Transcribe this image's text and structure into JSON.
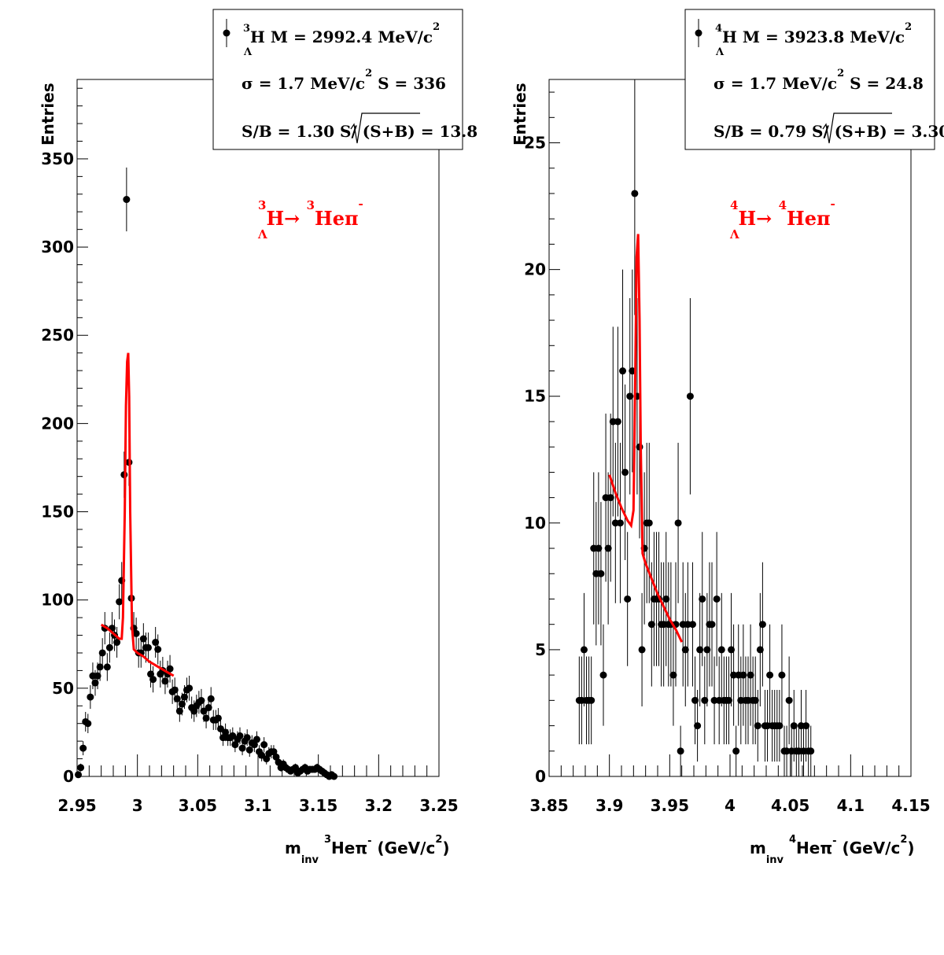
{
  "chart_data": [
    {
      "type": "scatter",
      "xlabel": {
        "pre": "m",
        "sub": "inv",
        "mass_num": "3",
        "particle": "Heπ",
        "charge": "-",
        "units": "(GeV/c",
        "units_sup": "2",
        "units_end": ")"
      },
      "ylabel": "Entries",
      "xlim": [
        2.95,
        3.25
      ],
      "ylim": [
        0,
        395
      ],
      "xticks": [
        2.95,
        3.0,
        3.05,
        3.1,
        3.15,
        3.2,
        3.25
      ],
      "xtick_labels": [
        "2.95",
        "3",
        "3.05",
        "3.1",
        "3.15",
        "3.2",
        "3.25"
      ],
      "yticks": [
        0,
        50,
        100,
        150,
        200,
        250,
        300,
        350
      ],
      "ytick_labels": [
        "0",
        "50",
        "100",
        "150",
        "200",
        "250",
        "300",
        "350"
      ],
      "legend": {
        "line1": {
          "mass_num": "3",
          "sub": "Λ",
          "text": "H M = 2992.4 MeV/c",
          "sup": "2"
        },
        "line2": {
          "text_a": "σ = 1.7 MeV/c",
          "sup": "2",
          "text_b": "S =  336"
        },
        "line3": {
          "text_a": "S/B = 1.30  S/",
          "sqrt_arg": "(S+B)",
          "text_b": " = 13.8"
        }
      },
      "annotation": {
        "mass1": "3",
        "sub1": "Λ",
        "part1": "H→",
        "mass2": "3",
        "part2": "Heπ",
        "charge": "-",
        "color": "#ff0000"
      },
      "series": [
        {
          "kind": "points",
          "x": [
            2.951,
            2.953,
            2.955,
            2.957,
            2.959,
            2.961,
            2.963,
            2.965,
            2.967,
            2.969,
            2.971,
            2.973,
            2.975,
            2.977,
            2.979,
            2.981,
            2.983,
            2.985,
            2.987,
            2.989,
            2.991,
            2.993,
            2.995,
            2.997,
            2.999,
            3.001,
            3.003,
            3.005,
            3.007,
            3.009,
            3.011,
            3.013,
            3.015,
            3.017,
            3.019,
            3.021,
            3.023,
            3.025,
            3.027,
            3.029,
            3.031,
            3.033,
            3.035,
            3.037,
            3.039,
            3.041,
            3.043,
            3.045,
            3.047,
            3.049,
            3.051,
            3.053,
            3.055,
            3.057,
            3.059,
            3.061,
            3.063,
            3.065,
            3.067,
            3.069,
            3.071,
            3.073,
            3.075,
            3.077,
            3.079,
            3.081,
            3.083,
            3.085,
            3.087,
            3.089,
            3.091,
            3.093,
            3.095,
            3.097,
            3.099,
            3.101,
            3.103,
            3.105,
            3.107,
            3.109,
            3.111,
            3.113,
            3.115,
            3.117,
            3.119,
            3.121,
            3.123,
            3.125,
            3.127,
            3.129,
            3.131,
            3.133,
            3.135,
            3.137,
            3.139,
            3.141,
            3.143,
            3.145,
            3.147,
            3.149,
            3.151,
            3.153,
            3.155,
            3.157,
            3.159,
            3.161,
            3.163
          ],
          "y": [
            1,
            5,
            16,
            31,
            30,
            45,
            57,
            53,
            57,
            62,
            70,
            84,
            62,
            73,
            84,
            80,
            76,
            99,
            111,
            171,
            327,
            178,
            101,
            84,
            81,
            70,
            70,
            78,
            73,
            73,
            58,
            55,
            76,
            72,
            58,
            60,
            54,
            58,
            61,
            48,
            49,
            44,
            37,
            41,
            45,
            49,
            50,
            39,
            37,
            40,
            42,
            43,
            37,
            33,
            39,
            44,
            32,
            32,
            33,
            27,
            22,
            25,
            22,
            22,
            23,
            18,
            21,
            23,
            16,
            20,
            22,
            15,
            19,
            18,
            21,
            14,
            12,
            18,
            10,
            13,
            14,
            14,
            11,
            8,
            5,
            7,
            5,
            4,
            3,
            4,
            5,
            2,
            3,
            4,
            5,
            3,
            4,
            4,
            4,
            5,
            4,
            3,
            2,
            1,
            0,
            1,
            0
          ],
          "err_mode": "sqrt"
        },
        {
          "kind": "fit",
          "color": "#ff0000",
          "x": [
            2.97,
            2.975,
            2.98,
            2.985,
            2.987,
            2.988,
            2.9895,
            2.9905,
            2.9915,
            2.9924,
            2.9932,
            2.994,
            2.9955,
            2.997,
            3.0,
            3.005,
            3.01,
            3.015,
            3.02,
            3.025,
            3.03
          ],
          "y": [
            86,
            84,
            81,
            78,
            78,
            90,
            150,
            210,
            235,
            240,
            215,
            150,
            85,
            72,
            70,
            68,
            65,
            63,
            61,
            59,
            57
          ]
        }
      ]
    },
    {
      "type": "scatter",
      "xlabel": {
        "pre": "m",
        "sub": "inv",
        "mass_num": "4",
        "particle": "Heπ",
        "charge": "-",
        "units": "(GeV/c",
        "units_sup": "2",
        "units_end": ")"
      },
      "ylabel": "Entries",
      "xlim": [
        3.85,
        4.15
      ],
      "ylim": [
        0,
        27.5
      ],
      "xticks": [
        3.85,
        3.9,
        3.95,
        4.0,
        4.05,
        4.1,
        4.15
      ],
      "xtick_labels": [
        "3.85",
        "3.9",
        "3.95",
        "4",
        "4.05",
        "4.1",
        "4.15"
      ],
      "yticks": [
        0,
        5,
        10,
        15,
        20,
        25
      ],
      "ytick_labels": [
        "0",
        "5",
        "10",
        "15",
        "20",
        "25"
      ],
      "legend": {
        "line1": {
          "mass_num": "4",
          "sub": "Λ",
          "text": "H M = 3923.8 MeV/c",
          "sup": "2"
        },
        "line2": {
          "text_a": "σ = 1.7 MeV/c",
          "sup": "2",
          "text_b": "S = 24.8"
        },
        "line3": {
          "text_a": "S/B = 0.79  S/",
          "sqrt_arg": "(S+B)",
          "text_b": " = 3.30"
        }
      },
      "annotation": {
        "mass1": "4",
        "sub1": "Λ",
        "part1": "H→",
        "mass2": "4",
        "part2": "Heπ",
        "charge": "-",
        "color": "#ff0000"
      },
      "series": [
        {
          "kind": "points",
          "x": [
            3.875,
            3.877,
            3.879,
            3.881,
            3.883,
            3.885,
            3.887,
            3.889,
            3.891,
            3.893,
            3.895,
            3.897,
            3.899,
            3.901,
            3.903,
            3.905,
            3.907,
            3.909,
            3.911,
            3.913,
            3.915,
            3.917,
            3.919,
            3.921,
            3.923,
            3.925,
            3.927,
            3.929,
            3.931,
            3.933,
            3.935,
            3.937,
            3.939,
            3.941,
            3.943,
            3.945,
            3.947,
            3.949,
            3.951,
            3.953,
            3.955,
            3.957,
            3.959,
            3.961,
            3.963,
            3.965,
            3.967,
            3.969,
            3.971,
            3.973,
            3.975,
            3.977,
            3.979,
            3.981,
            3.983,
            3.985,
            3.987,
            3.989,
            3.991,
            3.993,
            3.995,
            3.997,
            3.999,
            4.001,
            4.003,
            4.005,
            4.007,
            4.009,
            4.011,
            4.013,
            4.015,
            4.017,
            4.019,
            4.021,
            4.023,
            4.025,
            4.027,
            4.029,
            4.031,
            4.033,
            4.035,
            4.037,
            4.039,
            4.041,
            4.043,
            4.045,
            4.047,
            4.049,
            4.051,
            4.053,
            4.055,
            4.057,
            4.059,
            4.061,
            4.063,
            4.065,
            4.067
          ],
          "y": [
            3,
            3,
            5,
            3,
            3,
            3,
            9,
            8,
            9,
            8,
            4,
            11,
            9,
            11,
            14,
            10,
            14,
            10,
            16,
            12,
            7,
            15,
            16,
            23,
            15,
            13,
            5,
            9,
            10,
            10,
            6,
            7,
            7,
            7,
            6,
            6,
            7,
            6,
            6,
            4,
            6,
            10,
            1,
            6,
            5,
            6,
            15,
            6,
            3,
            2,
            5,
            7,
            3,
            5,
            6,
            6,
            3,
            7,
            3,
            5,
            3,
            3,
            3,
            5,
            4,
            1,
            4,
            3,
            4,
            3,
            3,
            4,
            3,
            3,
            2,
            5,
            6,
            2,
            2,
            4,
            2,
            2,
            2,
            2,
            4,
            1,
            1,
            3,
            1,
            2,
            1,
            1,
            2,
            1,
            2,
            1,
            1
          ],
          "err_mode": "sqrt"
        },
        {
          "kind": "fit",
          "color": "#ff0000",
          "x": [
            3.9,
            3.905,
            3.91,
            3.915,
            3.918,
            3.92,
            3.9215,
            3.9225,
            3.9238,
            3.925,
            3.926,
            3.9275,
            3.93,
            3.935,
            3.94,
            3.945,
            3.95,
            3.955,
            3.96
          ],
          "y": [
            11.9,
            11.2,
            10.6,
            10.1,
            9.9,
            10.5,
            16,
            20.5,
            21.4,
            18,
            13,
            8.8,
            8.4,
            7.8,
            7.2,
            6.7,
            6.2,
            5.8,
            5.3
          ]
        }
      ]
    }
  ]
}
